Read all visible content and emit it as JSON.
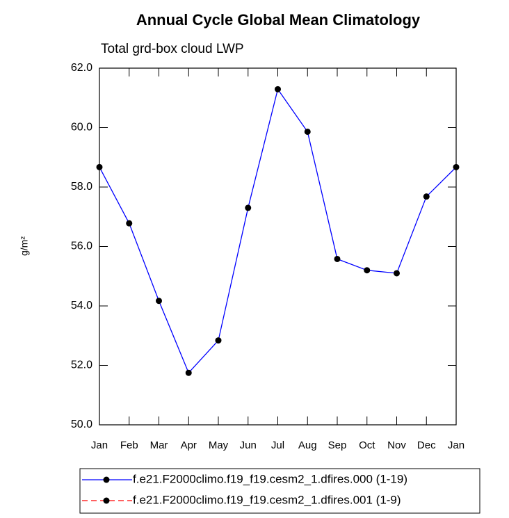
{
  "chart_data": {
    "type": "line",
    "title": "Annual Cycle Global Mean Climatology",
    "subtitle": "Total grd-box cloud LWP",
    "y_label": "g/m²",
    "categories": [
      "Jan",
      "Feb",
      "Mar",
      "Apr",
      "May",
      "Jun",
      "Jul",
      "Aug",
      "Sep",
      "Oct",
      "Nov",
      "Dec",
      "Jan"
    ],
    "series": [
      {
        "name": "f.e21.F2000climo.f19_f19.cesm2_1.dfires.000 (1-19)",
        "color": "#0000ff",
        "dash": false,
        "values": [
          58.67,
          56.78,
          54.17,
          51.75,
          52.84,
          57.3,
          61.29,
          59.86,
          55.58,
          55.2,
          55.1,
          57.68,
          58.67
        ]
      },
      {
        "name": "f.e21.F2000climo.f19_f19.cesm2_1.dfires.001 (1-9)",
        "color": "#ff0000",
        "dash": true,
        "values": [
          null,
          null,
          null,
          null,
          null,
          null,
          null,
          null,
          null,
          null,
          null,
          null,
          null
        ]
      }
    ],
    "ylim": [
      50,
      62
    ],
    "yticks": [
      {
        "value": 50,
        "label": "50.0"
      },
      {
        "value": 52,
        "label": "52.0"
      },
      {
        "value": 54,
        "label": "54.0"
      },
      {
        "value": 56,
        "label": "56.0"
      },
      {
        "value": 58,
        "label": "58.0"
      },
      {
        "value": 60,
        "label": "60.0"
      },
      {
        "value": 62,
        "label": "62.0"
      }
    ],
    "grid": false
  }
}
